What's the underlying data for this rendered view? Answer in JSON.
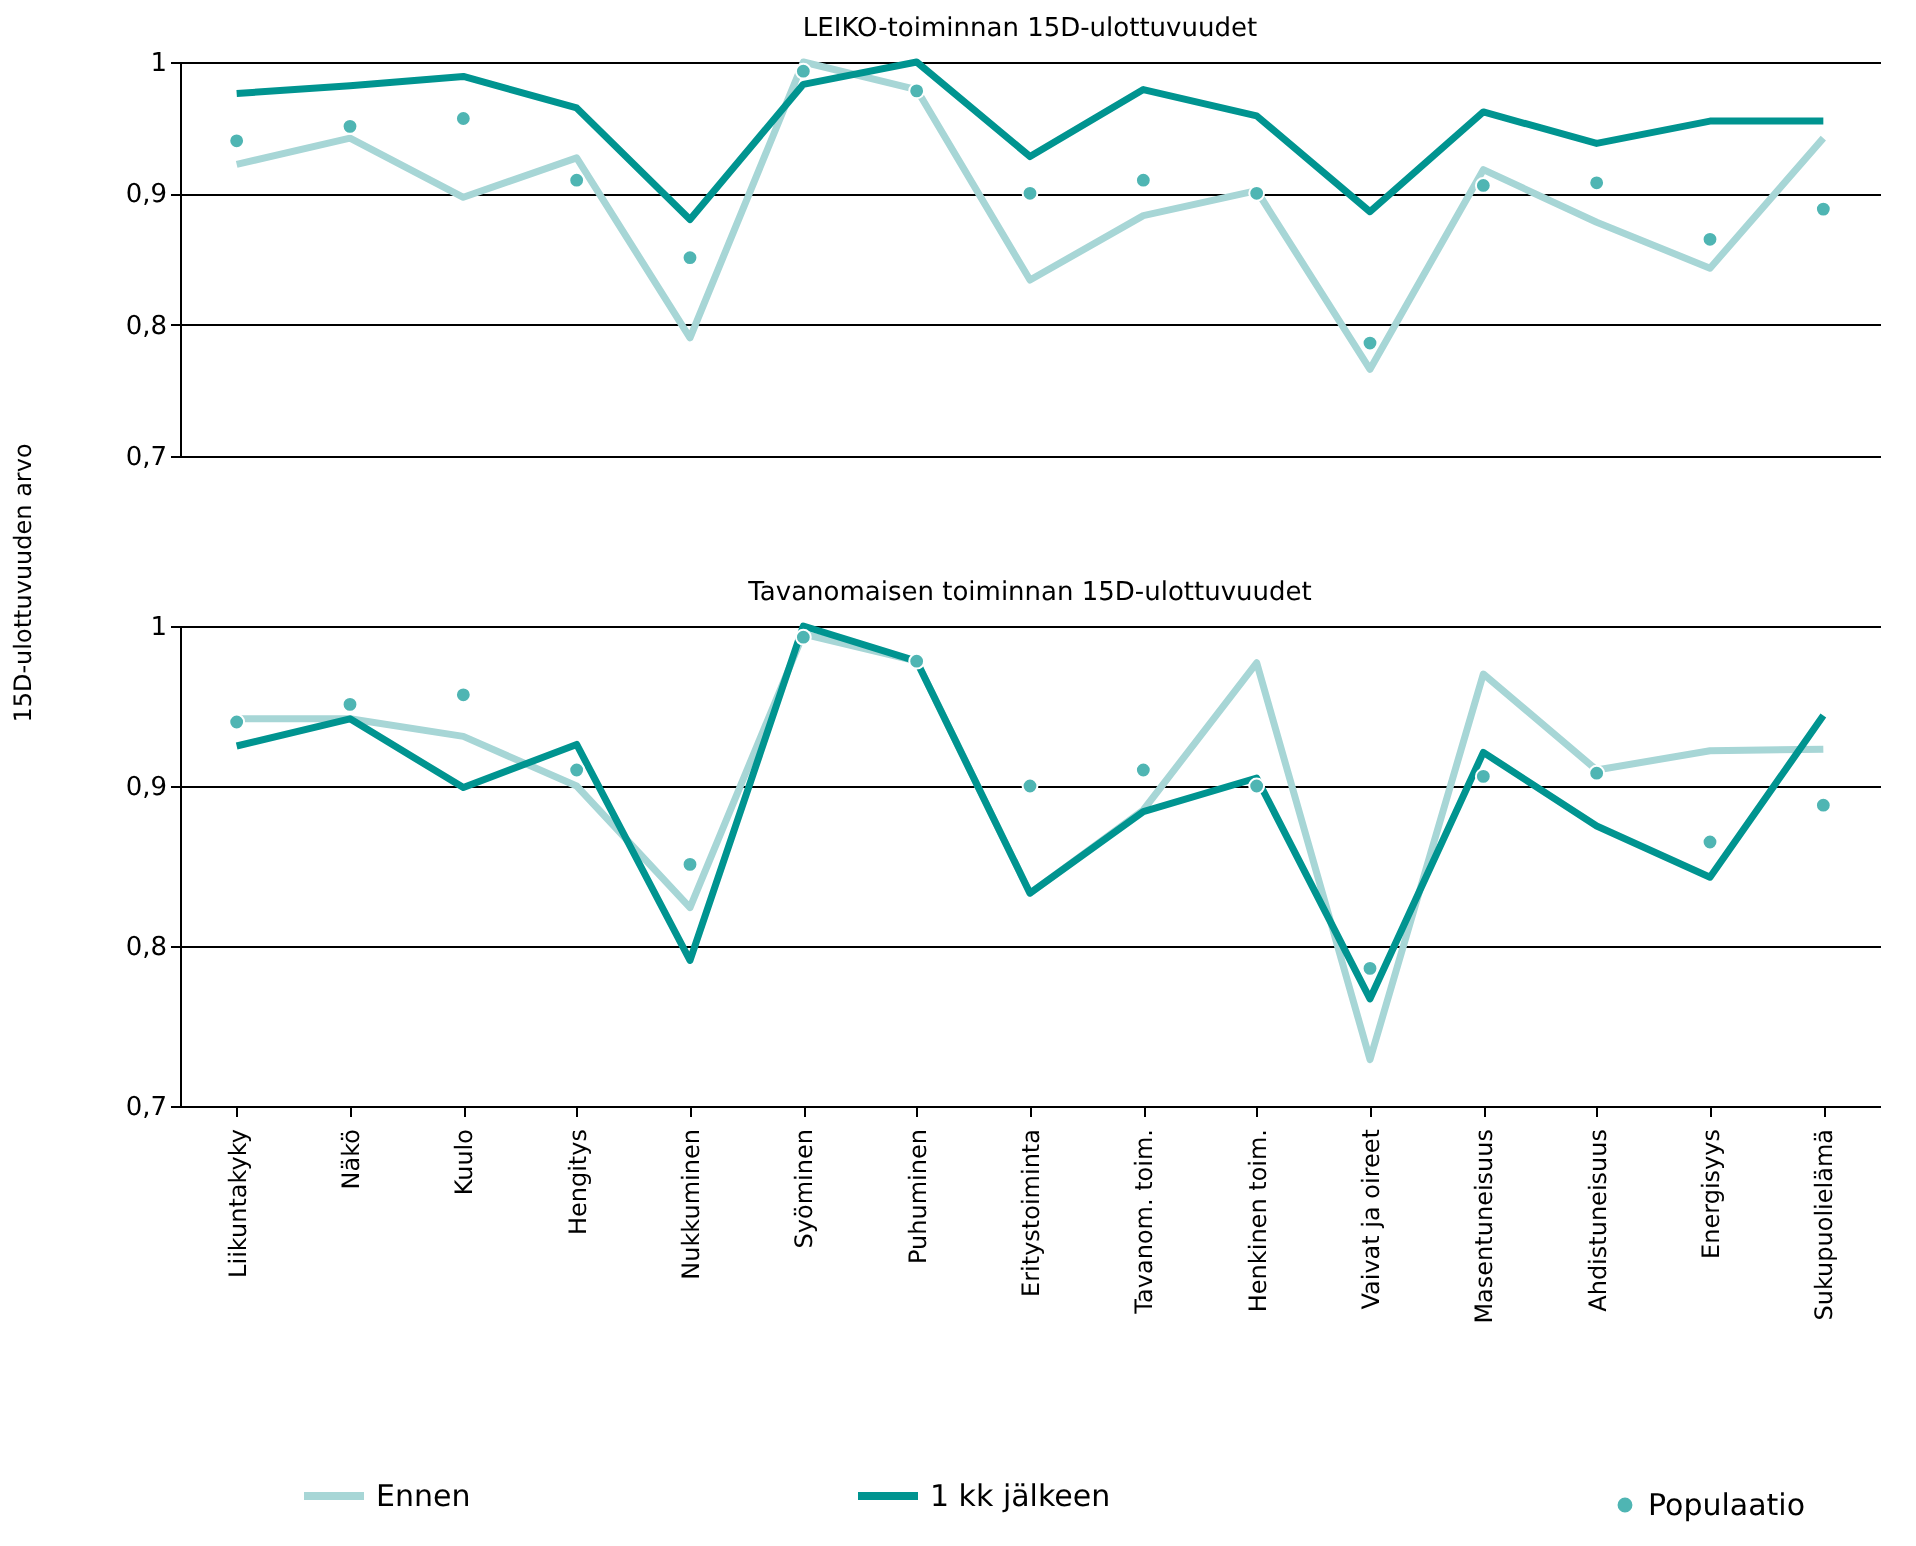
{
  "chart_data": [
    {
      "type": "line",
      "title": "LEIKO-toiminnan 15D-ulottuvuudet",
      "ylabel": "15D-ulottuvuuden arvo",
      "categories": [
        null,
        null,
        null,
        null,
        null,
        null,
        null,
        null,
        null,
        null,
        null,
        null,
        null,
        null,
        null
      ],
      "series": [
        {
          "color": "#a7d6d6",
          "values": [
            0.922,
            0.942,
            0.897,
            0.927,
            0.79,
            1.0,
            0.979,
            0.834,
            0.883,
            0.902,
            0.766,
            0.918,
            0.878,
            0.843,
            0.942
          ]
        },
        {
          "color": "#009490",
          "values": [
            0.976,
            0.982,
            0.989,
            0.965,
            0.88,
            0.983,
            1.0,
            0.928,
            0.979,
            0.959,
            0.886,
            0.962,
            0.938,
            0.955,
            0.955
          ]
        },
        {
          "type": "scatter",
          "marker": "circle",
          "color": "#4fb5b3",
          "values": [
            0.94,
            0.951,
            0.957,
            0.91,
            0.851,
            0.993,
            0.978,
            0.9,
            0.91,
            0.9,
            0.786,
            0.906,
            0.908,
            0.865,
            0.888
          ]
        }
      ],
      "ylim": [
        0.7,
        1
      ],
      "yticks": [
        {
          "value": 0.7,
          "label": "0,7"
        },
        {
          "value": 0.8,
          "label": "0,8"
        },
        {
          "value": 0.9,
          "label": "0,9"
        },
        {
          "value": 1,
          "label": "1"
        }
      ],
      "grid": "y",
      "tick_labels": "y",
      "marker": "none",
      "line_style": "solid"
    },
    {
      "type": "line",
      "title": "Tavanomaisen toiminnan 15D-ulottuvuudet",
      "categories": [
        "Liikuntakyky",
        "Näkö",
        "Kuulo",
        "Hengitys",
        "Nukkuminen",
        "Syöminen",
        "Puhuminen",
        "Eritystoiminta",
        "Tavanom. toim.",
        "Henkinen toim.",
        "Vaivat ja oireet",
        "Masentuneisuus",
        "Ahdistuneisuus",
        "Energisyys",
        "Sukupuolielämä"
      ],
      "series": [
        {
          "name": "Ennen",
          "color": "#a7d6d6",
          "values": [
            0.942,
            0.942,
            0.931,
            0.9,
            0.824,
            0.995,
            0.978,
            0.833,
            0.885,
            0.977,
            0.729,
            0.97,
            0.91,
            0.922,
            0.923
          ]
        },
        {
          "name": "1 kk jälkeen",
          "color": "#009490",
          "values": [
            0.925,
            0.942,
            0.899,
            0.926,
            0.791,
            1.0,
            0.978,
            0.833,
            0.884,
            0.905,
            0.767,
            0.921,
            0.875,
            0.843,
            0.944
          ]
        },
        {
          "name": "Populaatio",
          "type": "scatter",
          "marker": "circle",
          "color": "#4fb5b3",
          "values": [
            0.94,
            0.951,
            0.957,
            0.91,
            0.851,
            0.993,
            0.978,
            0.9,
            0.91,
            0.9,
            0.786,
            0.906,
            0.908,
            0.865,
            0.888
          ]
        }
      ],
      "ylim": [
        0.7,
        1
      ],
      "yticks": [
        {
          "value": 0.7,
          "label": "0,7"
        },
        {
          "value": 0.8,
          "label": "0,8"
        },
        {
          "value": 0.9,
          "label": "0,9"
        },
        {
          "value": 1,
          "label": "1"
        }
      ],
      "grid": "y",
      "legend": "bottom",
      "marker": "none",
      "line_style": "solid"
    }
  ]
}
